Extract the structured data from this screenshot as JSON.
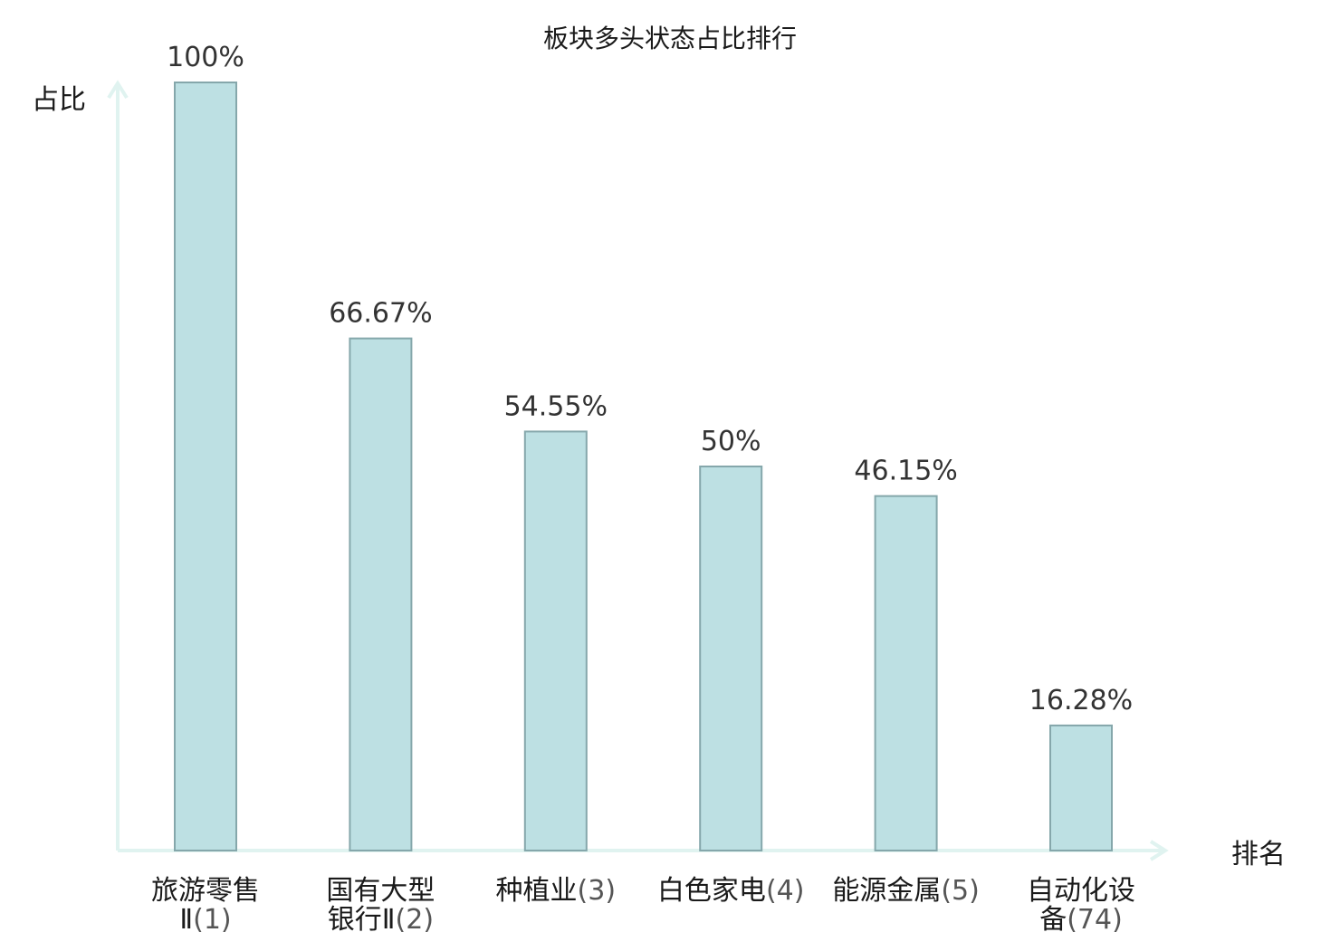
{
  "chart_data": {
    "type": "bar",
    "title": "板块多头状态占比排行",
    "ylabel": "占比",
    "xlabel": "排名",
    "ylim": [
      0,
      100
    ],
    "grid": false,
    "categories": [
      {
        "name_lines": [
          "旅游零售",
          "Ⅱ"
        ],
        "rank": "(1)",
        "highlight": false
      },
      {
        "name_lines": [
          "国有大型",
          "银行Ⅱ"
        ],
        "rank": "(2)",
        "highlight": false
      },
      {
        "name_lines": [
          "种植业"
        ],
        "rank": "(3)",
        "highlight": false
      },
      {
        "name_lines": [
          "白色家电"
        ],
        "rank": "(4)",
        "highlight": false
      },
      {
        "name_lines": [
          "能源金属"
        ],
        "rank": "(5)",
        "highlight": false
      },
      {
        "name_lines": [
          "自动化设",
          "备"
        ],
        "rank": "(74)",
        "highlight": true
      }
    ],
    "values": [
      100,
      66.67,
      54.55,
      50,
      46.15,
      16.28
    ],
    "value_labels": [
      "100%",
      "66.67%",
      "54.55%",
      "50%",
      "46.15%",
      "16.28%"
    ]
  },
  "colors": {
    "bar_fill": "#bde0e3",
    "bar_stroke": "#85a7ab",
    "axis": "#e0f3f0",
    "highlight": "#e0171a"
  }
}
